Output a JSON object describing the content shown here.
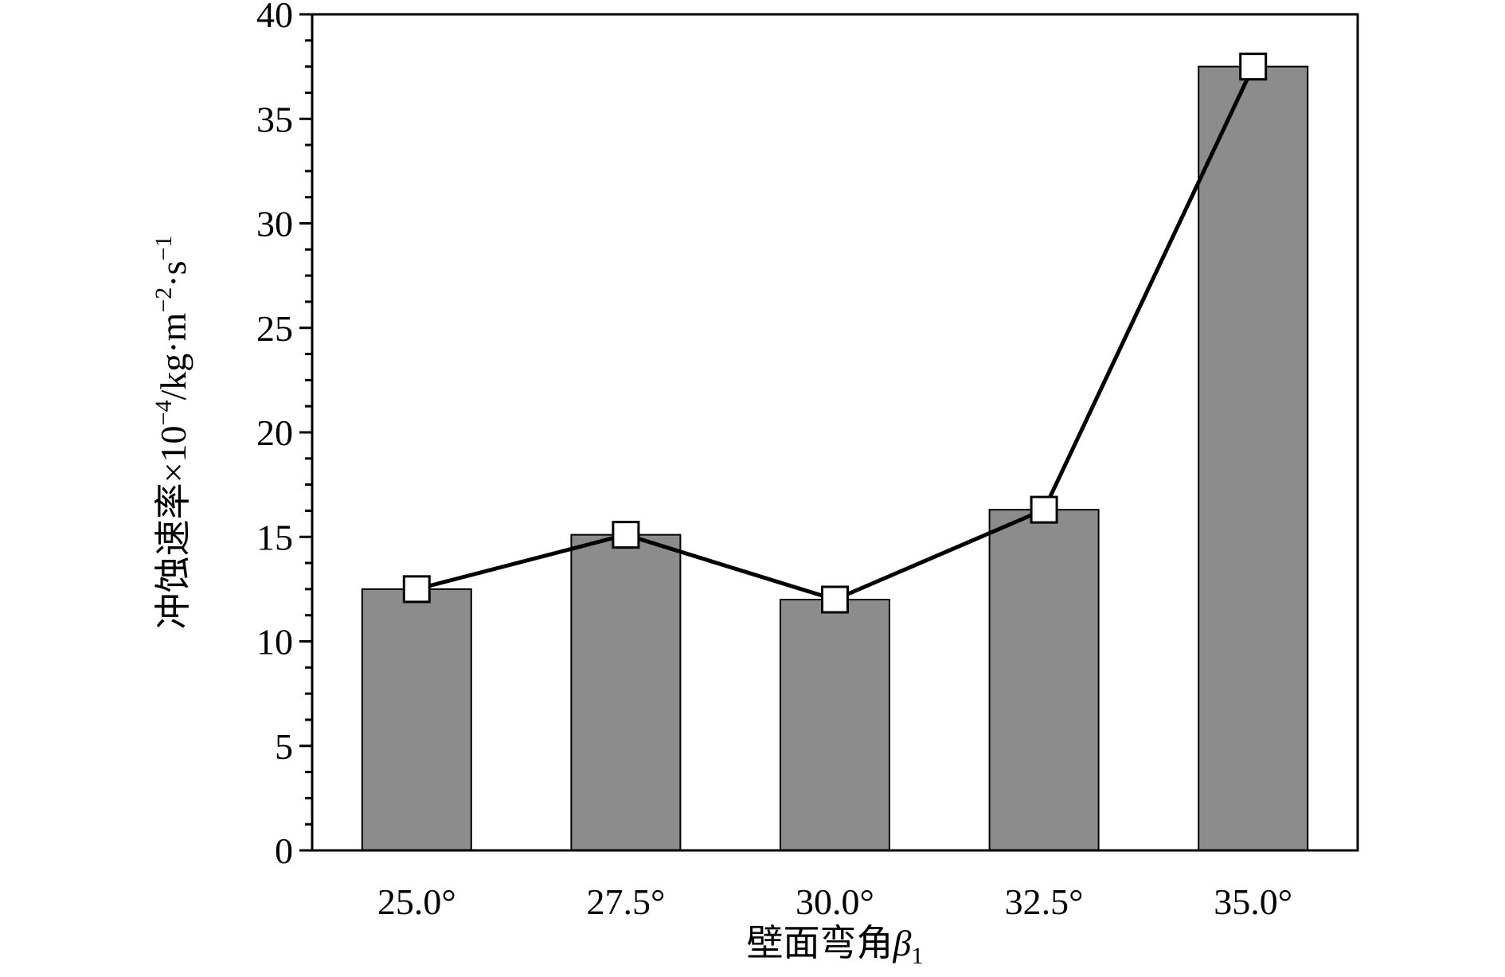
{
  "chart_data": {
    "type": "bar",
    "categories": [
      "25.0°",
      "27.5°",
      "30.0°",
      "32.5°",
      "35.0°"
    ],
    "series": [
      {
        "values": [
          12.5,
          15.1,
          12.0,
          16.3,
          37.5
        ],
        "color": "#8c8c8c"
      },
      {
        "values": [
          12.5,
          15.1,
          12.0,
          16.3,
          37.5
        ],
        "marker": "square",
        "line_color": "#000000",
        "marker_fill": "#ffffff"
      }
    ],
    "xlabel": {
      "main": "壁面弯角",
      "symbol": "β",
      "subscript": "1"
    },
    "ylabel": {
      "main": "冲蚀速率×10",
      "exp1": "−4",
      "unit1": "/kg·m",
      "exp2": "−2",
      "unit2": "·s",
      "exp3": "−1"
    },
    "ylim": [
      0,
      40
    ],
    "yticks": [
      "0",
      "5",
      "10",
      "15",
      "20",
      "25",
      "30",
      "35",
      "40"
    ],
    "grid": false,
    "legend": "none"
  }
}
